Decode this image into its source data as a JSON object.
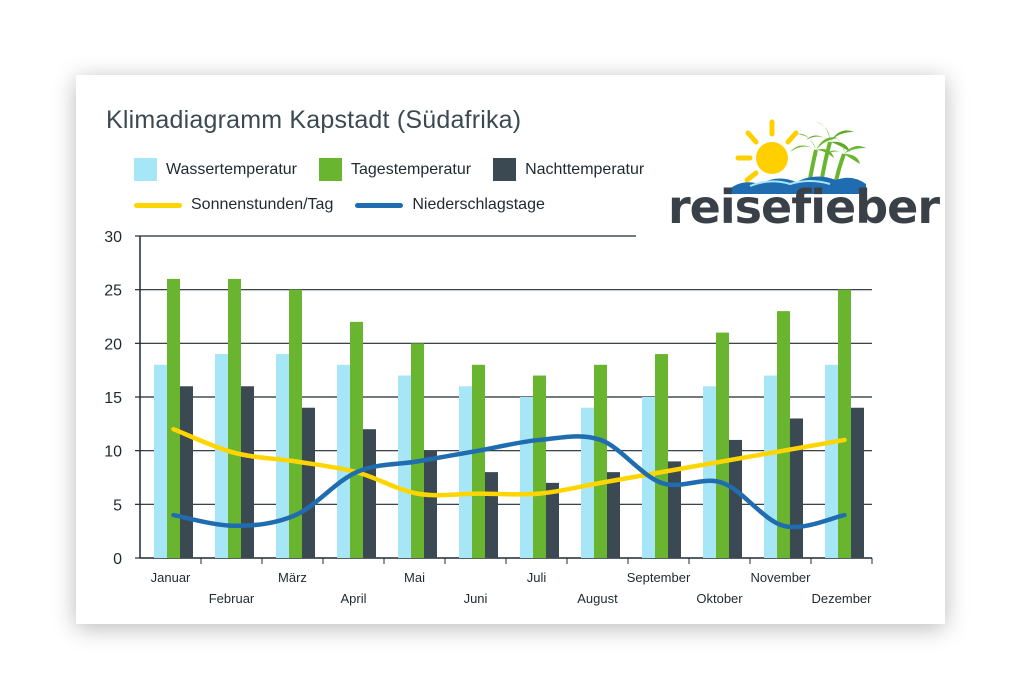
{
  "logo": {
    "text": "reisefieber"
  },
  "chart_data": {
    "type": "bar",
    "title": "Klimadiagramm Kapstadt (Südafrika)",
    "categories": [
      "Januar",
      "Februar",
      "März",
      "April",
      "Mai",
      "Juni",
      "Juli",
      "August",
      "September",
      "Oktober",
      "November",
      "Dezember"
    ],
    "series": [
      {
        "name": "Wassertemperatur",
        "kind": "bar",
        "color": "#a6e6f7",
        "values": [
          18,
          19,
          19,
          18,
          17,
          16,
          15,
          14,
          15,
          16,
          17,
          18
        ]
      },
      {
        "name": "Tagestemperatur",
        "kind": "bar",
        "color": "#6ab52f",
        "values": [
          26,
          26,
          25,
          22,
          20,
          18,
          17,
          18,
          19,
          21,
          23,
          25
        ]
      },
      {
        "name": "Nachttemperatur",
        "kind": "bar",
        "color": "#3b4a52",
        "values": [
          16,
          16,
          14,
          12,
          10,
          8,
          7,
          8,
          9,
          11,
          13,
          14
        ]
      },
      {
        "name": "Sonnenstunden/Tag",
        "kind": "line",
        "color": "#ffd500",
        "values": [
          12,
          9.8,
          9,
          8,
          6,
          6,
          6,
          7,
          8,
          9,
          10,
          11
        ]
      },
      {
        "name": "Niederschlagstage",
        "kind": "line",
        "color": "#1f6db0",
        "values": [
          4,
          3,
          4,
          8,
          9,
          10,
          11,
          11,
          7,
          7,
          3,
          4
        ]
      }
    ],
    "ylim": [
      0,
      30
    ],
    "yticks": [
      0,
      5,
      10,
      15,
      20,
      25,
      30
    ],
    "xlabel": "",
    "ylabel": "",
    "grid": true,
    "legend": "top-left"
  }
}
